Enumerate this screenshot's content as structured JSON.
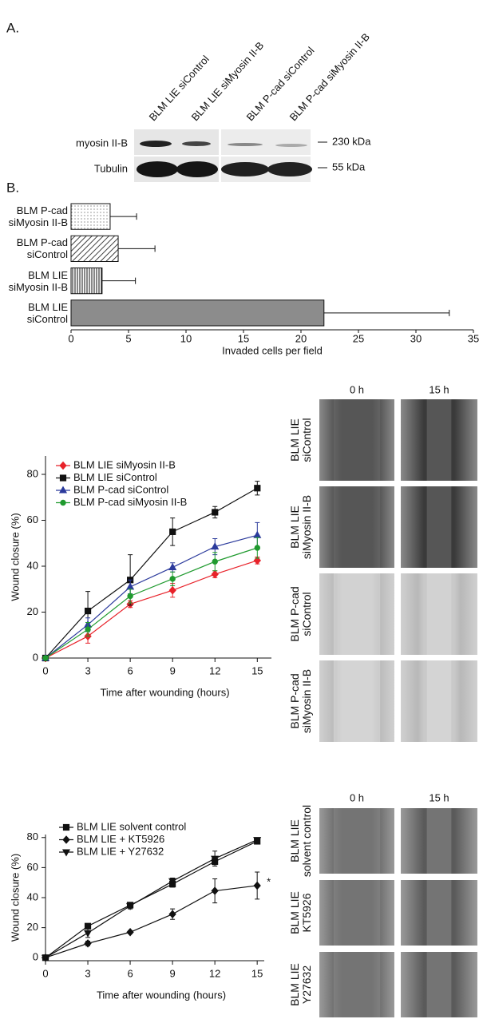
{
  "blot": {
    "panel_label": "A.",
    "lanes": [
      "BLM LIE siControl",
      "BLM LIE siMyosin II-B",
      "BLM P-cad siControl",
      "BLM P-cad siMyosin II-B"
    ],
    "rows": [
      "myosin II-B",
      "Tubulin"
    ],
    "markers": [
      "230 kDa",
      "55 kDa"
    ]
  },
  "chart_data": [
    {
      "type": "bar",
      "orientation": "horizontal",
      "panel_label": "B.",
      "categories": [
        "BLM P-cad siMyosin II-B",
        "BLM P-cad siControl",
        "BLM LIE siMyosin II-B",
        "BLM LIE siControl"
      ],
      "values": [
        3.4,
        4.1,
        2.7,
        22
      ],
      "errors": [
        2.3,
        3.2,
        2.9,
        10.9
      ],
      "patterns": [
        "dots",
        "diagonal",
        "vertical",
        "solid"
      ],
      "color": "#8c8c8c",
      "xlim": [
        0,
        35
      ],
      "xticks": [
        0,
        5,
        10,
        15,
        20,
        25,
        30,
        35
      ],
      "xlabel": "Invaded cells per field"
    },
    {
      "type": "line",
      "x": [
        0,
        3,
        6,
        9,
        12,
        15
      ],
      "xlim": [
        0,
        16
      ],
      "ylim": [
        0,
        88
      ],
      "xticks": [
        0,
        3,
        6,
        9,
        12,
        15
      ],
      "yticks": [
        0,
        20,
        40,
        60,
        80
      ],
      "xlabel": "Time after wounding (hours)",
      "ylabel": "Wound closure (%)",
      "legend": "upper left",
      "series": [
        {
          "name": "BLM LIE siMyosin II-B",
          "color": "#e8222a",
          "marker": "diamond",
          "values": [
            0,
            9.5,
            23.5,
            29.5,
            36.5,
            42.5
          ],
          "errors": [
            0,
            3,
            1.5,
            3,
            1.5,
            1.5
          ]
        },
        {
          "name": "BLM LIE siControl",
          "color": "#111111",
          "marker": "square",
          "values": [
            0,
            20.5,
            34,
            55,
            63.5,
            74
          ],
          "errors": [
            0,
            8.5,
            11,
            6,
            2.5,
            3
          ]
        },
        {
          "name": "BLM P-cad siControl",
          "color": "#2b3a9c",
          "marker": "triangle",
          "values": [
            0,
            14.5,
            31,
            39.5,
            48.5,
            53.5
          ],
          "errors": [
            0,
            3,
            3,
            2,
            3.5,
            5.5
          ]
        },
        {
          "name": "BLM P-cad siMyosin II-B",
          "color": "#1f9a2e",
          "marker": "circle",
          "values": [
            0,
            12.5,
            27,
            34.5,
            42,
            48
          ],
          "errors": [
            0,
            3,
            3,
            3,
            4,
            4.5
          ]
        }
      ]
    },
    {
      "type": "line",
      "x": [
        0,
        3,
        6,
        9,
        12,
        15
      ],
      "xlim": [
        0,
        15.5
      ],
      "ylim": [
        -2,
        82
      ],
      "xticks": [
        0,
        3,
        6,
        9,
        12,
        15
      ],
      "yticks": [
        0,
        20,
        40,
        60,
        80
      ],
      "xlabel": "Time after wounding (hours)",
      "ylabel": "Wound closure (%)",
      "legend": "upper left",
      "series": [
        {
          "name": "BLM LIE solvent control",
          "color": "#111111",
          "marker": "square",
          "values": [
            0,
            21,
            35,
            49,
            64,
            77.5
          ],
          "errors": [
            0,
            1.5,
            1.5,
            2,
            2,
            1.5
          ]
        },
        {
          "name": "BLM LIE + KT5926",
          "color": "#111111",
          "marker": "diamond",
          "values": [
            0,
            9.5,
            17,
            29,
            44.5,
            48
          ],
          "errors": [
            0,
            1.5,
            1,
            3.5,
            8,
            9
          ],
          "annotation": "*"
        },
        {
          "name": "BLM LIE + Y27632",
          "color": "#111111",
          "marker": "triangle-down",
          "values": [
            0,
            16.5,
            34.5,
            51,
            66,
            78.5
          ],
          "errors": [
            0,
            3,
            2,
            2,
            5,
            1
          ]
        }
      ]
    }
  ],
  "images": [
    {
      "columns": [
        "0 h",
        "15 h"
      ],
      "rows": [
        "BLM LIE siControl",
        "BLM LIE siMyosin II-B",
        "BLM P-cad siControl",
        "BLM P-cad siMyosin II-B"
      ]
    },
    {
      "columns": [
        "0 h",
        "15 h"
      ],
      "rows": [
        "BLM LIE solvent control",
        "BLM LIE KT5926",
        "BLM LIE Y27632"
      ]
    }
  ]
}
